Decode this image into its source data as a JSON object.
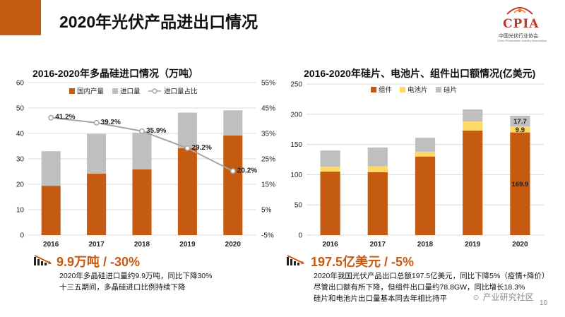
{
  "slide": {
    "title": "2020年光伏产品进出口情况",
    "page_number": "10",
    "watermark": "产业研究社区",
    "accent_color": "#c55a11"
  },
  "logo": {
    "text": "CPIA",
    "subtitle": "中国光伏行业协会",
    "subtitle_en": "China Photovoltaic Industry Association"
  },
  "left": {
    "kpi": "9.9万吨 / -30%",
    "desc_lines": [
      "2020年多晶硅进口量约9.9万吨，同比下降30%",
      "十三五期间，多晶硅进口比例持续下降"
    ]
  },
  "right": {
    "kpi": "197.5亿美元 / -5%",
    "desc_lines": [
      "2020年我国光伏产品出口总额197.5亿美元，同比下降5%（疫情+降价）",
      "尽管出口额有所下降，但组件出口量约78.8GW，同比增长18.3%",
      "硅片和电池片出口量基本同去年相比持平"
    ]
  },
  "chart_data": [
    {
      "type": "bar",
      "stacked": true,
      "title": "2016-2020年多晶硅进口情况（万吨）",
      "categories": [
        "2016",
        "2017",
        "2018",
        "2019",
        "2020"
      ],
      "series": [
        {
          "name": "国内产量",
          "values": [
            19.4,
            24.2,
            25.9,
            34.2,
            39.2
          ],
          "color": "#c55a11"
        },
        {
          "name": "进口量",
          "values": [
            13.6,
            15.6,
            14.4,
            14.0,
            9.9
          ],
          "color": "#bfbfbf"
        }
      ],
      "line_series": {
        "name": "进口量占比",
        "values": [
          41.2,
          39.2,
          35.9,
          29.2,
          20.2
        ],
        "labels": [
          "41.2%",
          "39.2%",
          "35.9%",
          "29.2%",
          "20.2%"
        ],
        "color": "#a6a6a6"
      },
      "ylim": [
        0,
        60
      ],
      "yticks": [
        "0",
        "10",
        "20",
        "30",
        "40",
        "50",
        "60"
      ],
      "y2lim": [
        -5,
        55
      ],
      "y2ticks": [
        "-5%",
        "5%",
        "15%",
        "25%",
        "35%",
        "45%",
        "55%"
      ],
      "grid": true,
      "legend": "top"
    },
    {
      "type": "bar",
      "stacked": true,
      "title": "2016-2020年硅片、电池片、组件出口额情况(亿美元)",
      "categories": [
        "2016",
        "2017",
        "2018",
        "2019",
        "2020"
      ],
      "series": [
        {
          "name": "组件",
          "values": [
            105,
            104,
            130,
            173,
            169.9
          ],
          "color": "#c55a11"
        },
        {
          "name": "电池片",
          "values": [
            8,
            10,
            8,
            15,
            9.9
          ],
          "color": "#ffd966"
        },
        {
          "name": "硅片",
          "values": [
            27,
            31,
            23,
            20,
            17.7
          ],
          "color": "#bfbfbf"
        }
      ],
      "data_labels": [
        {
          "category": "2020",
          "series": "组件",
          "text": "169.9"
        },
        {
          "category": "2020",
          "series": "电池片",
          "text": "9.9"
        },
        {
          "category": "2020",
          "series": "硅片",
          "text": "17.7"
        }
      ],
      "ylim": [
        0,
        250
      ],
      "yticks": [
        "0",
        "50",
        "100",
        "150",
        "200",
        "250"
      ],
      "grid": true,
      "legend": "top"
    }
  ]
}
